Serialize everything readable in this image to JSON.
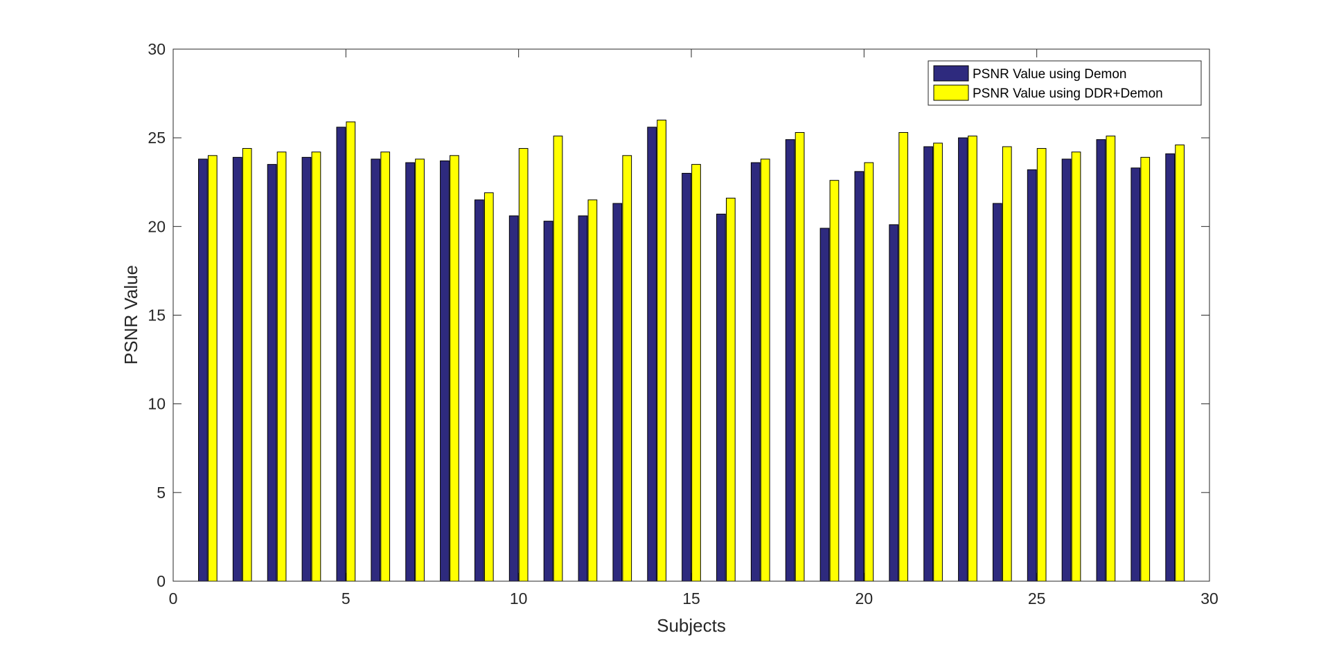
{
  "chart_data": {
    "type": "bar",
    "xlabel": "Subjects",
    "ylabel": "PSNR Value",
    "xlim": [
      0,
      30
    ],
    "ylim": [
      0,
      30
    ],
    "xticks": [
      0,
      5,
      10,
      15,
      20,
      25,
      30
    ],
    "yticks": [
      0,
      5,
      10,
      15,
      20,
      25,
      30
    ],
    "grid": false,
    "legend_position": "top-right",
    "categories": [
      1,
      2,
      3,
      4,
      5,
      6,
      7,
      8,
      9,
      10,
      11,
      12,
      13,
      14,
      15,
      16,
      17,
      18,
      19,
      20,
      21,
      22,
      23,
      24,
      25,
      26,
      27,
      28,
      29
    ],
    "series": [
      {
        "name": "PSNR Value using Demon",
        "color": "#2e2a7e",
        "values": [
          23.8,
          23.9,
          23.5,
          23.9,
          25.6,
          23.8,
          23.6,
          23.7,
          21.5,
          20.6,
          20.3,
          20.6,
          21.3,
          25.6,
          23.0,
          20.7,
          23.6,
          24.9,
          19.9,
          23.1,
          20.1,
          24.5,
          25.0,
          21.3,
          23.2,
          23.8,
          24.9,
          23.3,
          24.1
        ]
      },
      {
        "name": "PSNR Value using DDR+Demon",
        "color": "#ffff00",
        "values": [
          24.0,
          24.4,
          24.2,
          24.2,
          25.9,
          24.2,
          23.8,
          24.0,
          21.9,
          24.4,
          25.1,
          21.5,
          24.0,
          26.0,
          23.5,
          21.6,
          23.8,
          25.3,
          22.6,
          23.6,
          25.3,
          24.7,
          25.1,
          24.5,
          24.4,
          24.2,
          25.1,
          23.9,
          24.6
        ]
      }
    ]
  }
}
